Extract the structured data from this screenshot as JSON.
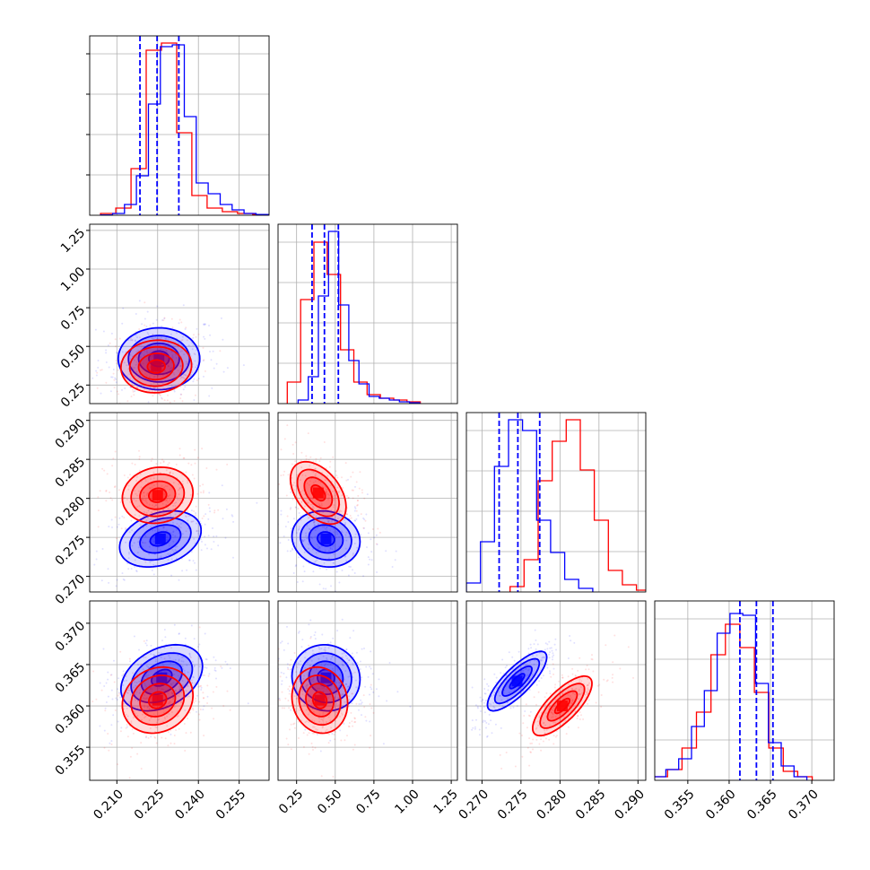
{
  "chart_data": {
    "type": "corner",
    "grid": true,
    "legend": "none",
    "colors": {
      "series_a": "#0000ff",
      "series_b": "#ff0000"
    },
    "parameters": [
      {
        "ticks": [
          "0.210",
          "0.225",
          "0.240",
          "0.255"
        ],
        "tick_values": [
          0.21,
          0.225,
          0.24,
          0.255
        ],
        "range": [
          0.2,
          0.266
        ]
      },
      {
        "ticks": [
          "0.25",
          "0.50",
          "0.75",
          "1.00",
          "1.25"
        ],
        "tick_values": [
          0.25,
          0.5,
          0.75,
          1.0,
          1.25
        ],
        "range": [
          0.13,
          1.29
        ]
      },
      {
        "ticks": [
          "0.270",
          "0.275",
          "0.280",
          "0.285",
          "0.290"
        ],
        "tick_values": [
          0.27,
          0.275,
          0.28,
          0.285,
          0.29
        ],
        "range": [
          0.268,
          0.291
        ]
      },
      {
        "ticks": [
          "0.355",
          "0.360",
          "0.365",
          "0.370"
        ],
        "tick_values": [
          0.355,
          0.36,
          0.365,
          0.37
        ],
        "range": [
          0.351,
          0.3727
        ]
      }
    ],
    "series": [
      {
        "color": "#0000ff",
        "quantiles": [
          [
            0.2185,
            0.2248,
            0.2328
          ],
          [
            0.35,
            0.43,
            0.52
          ],
          [
            0.2722,
            0.2746,
            0.2774
          ],
          [
            0.3613,
            0.3633,
            0.3653
          ]
        ],
        "hist": [
          [
            0.002,
            0.01,
            0.06,
            0.22,
            0.62,
            0.94,
            0.95,
            0.55,
            0.18,
            0.12,
            0.06,
            0.03,
            0.01,
            0.004
          ],
          [
            0.02,
            0.15,
            0.6,
            0.96,
            0.55,
            0.24,
            0.11,
            0.04,
            0.03,
            0.02,
            0.01,
            0.005
          ],
          [
            0.05,
            0.28,
            0.7,
            0.96,
            0.9,
            0.4,
            0.22,
            0.07,
            0.02
          ],
          [
            0.02,
            0.06,
            0.12,
            0.3,
            0.5,
            0.82,
            0.93,
            0.92,
            0.54,
            0.21,
            0.08,
            0.02
          ]
        ],
        "blobs": [
          {
            "dims": [
              0,
              1
            ],
            "center": [
              0.2255,
              0.42
            ],
            "sigma": [
              0.0075,
              0.1
            ],
            "rho": 0.0
          },
          {
            "dims": [
              0,
              2
            ],
            "center": [
              0.226,
              0.2748
            ],
            "sigma": [
              0.0075,
              0.0018
            ],
            "rho": 0.3
          },
          {
            "dims": [
              1,
              2
            ],
            "center": [
              0.44,
              0.2748
            ],
            "sigma": [
              0.11,
              0.0018
            ],
            "rho": -0.1
          },
          {
            "dims": [
              0,
              3
            ],
            "center": [
              0.2265,
              0.3634
            ],
            "sigma": [
              0.0075,
              0.002
            ],
            "rho": 0.35
          },
          {
            "dims": [
              1,
              3
            ],
            "center": [
              0.44,
              0.3634
            ],
            "sigma": [
              0.11,
              0.002
            ],
            "rho": -0.05
          },
          {
            "dims": [
              2,
              3
            ],
            "center": [
              0.2745,
              0.363
            ],
            "sigma": [
              0.0019,
              0.0018
            ],
            "rho": 0.8
          }
        ]
      },
      {
        "color": "#ff0000",
        "quantiles": [],
        "hist": [
          [
            0.01,
            0.04,
            0.26,
            0.92,
            0.96,
            0.46,
            0.11,
            0.04,
            0.02,
            0.01,
            0.004
          ],
          [
            0.12,
            0.58,
            0.9,
            0.72,
            0.3,
            0.12,
            0.05,
            0.03,
            0.02,
            0.01
          ],
          [
            0.03,
            0.18,
            0.62,
            0.84,
            0.96,
            0.68,
            0.4,
            0.12,
            0.04,
            0.01
          ],
          [
            0.02,
            0.06,
            0.18,
            0.38,
            0.7,
            0.87,
            0.74,
            0.49,
            0.18,
            0.05,
            0.02
          ]
        ],
        "blobs": [
          {
            "dims": [
              0,
              1
            ],
            "center": [
              0.2245,
              0.37
            ],
            "sigma": [
              0.0065,
              0.085
            ],
            "rho": 0.05
          },
          {
            "dims": [
              0,
              2
            ],
            "center": [
              0.225,
              0.2804
            ],
            "sigma": [
              0.0065,
              0.0018
            ],
            "rho": 0.1
          },
          {
            "dims": [
              1,
              2
            ],
            "center": [
              0.39,
              0.2807
            ],
            "sigma": [
              0.09,
              0.002
            ],
            "rho": -0.45
          },
          {
            "dims": [
              0,
              3
            ],
            "center": [
              0.225,
              0.3607
            ],
            "sigma": [
              0.0065,
              0.002
            ],
            "rho": 0.15
          },
          {
            "dims": [
              1,
              3
            ],
            "center": [
              0.4,
              0.3607
            ],
            "sigma": [
              0.09,
              0.002
            ],
            "rho": -0.1
          },
          {
            "dims": [
              2,
              3
            ],
            "center": [
              0.2803,
              0.36
            ],
            "sigma": [
              0.0019,
              0.0018
            ],
            "rho": 0.75
          }
        ]
      }
    ]
  }
}
